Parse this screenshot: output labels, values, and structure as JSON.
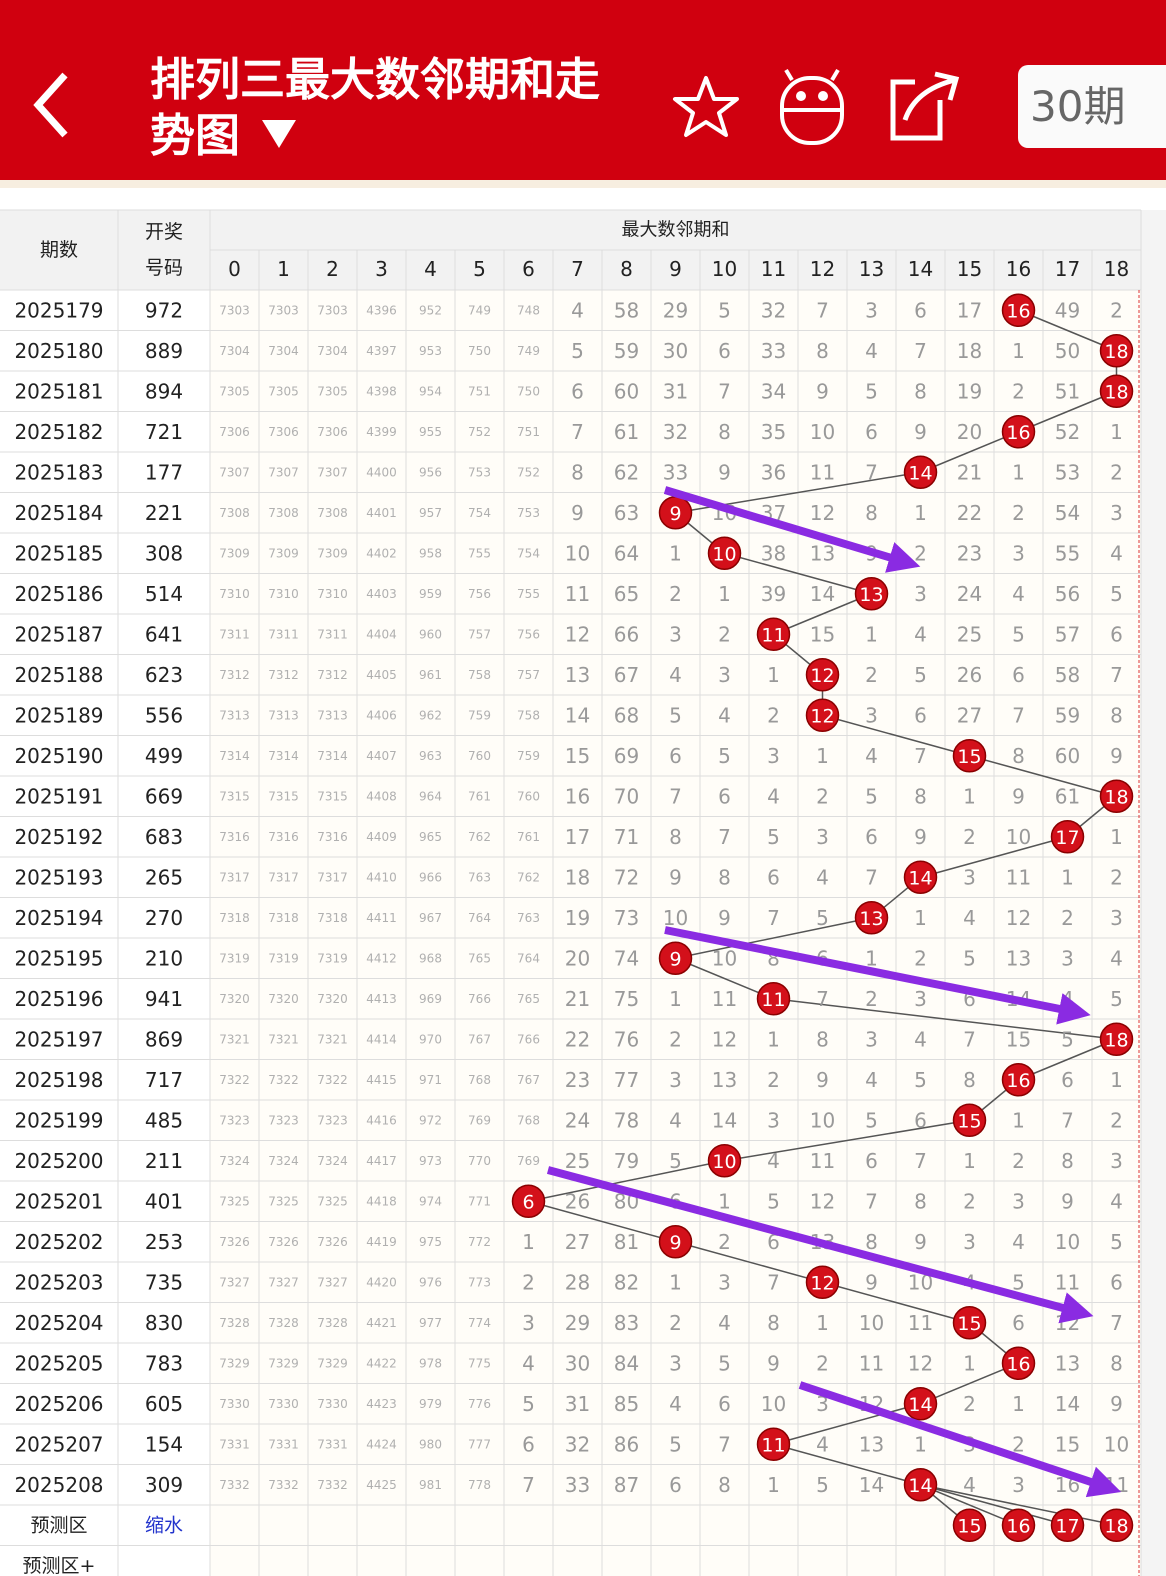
{
  "header": {
    "title": "排列三最大数邻期和走势图",
    "period_select": "30期"
  },
  "table": {
    "period_header": "期数",
    "number_header": "开奖号码",
    "group_header": "最大数邻期和",
    "columns": [
      0,
      1,
      2,
      3,
      4,
      5,
      6,
      7,
      8,
      9,
      10,
      11,
      12,
      13,
      14,
      15,
      16,
      17,
      18
    ],
    "rows": [
      {
        "period": "2025179",
        "number": "972",
        "cells": [
          7303,
          7303,
          7303,
          4396,
          952,
          749,
          748,
          4,
          58,
          29,
          5,
          32,
          7,
          3,
          6,
          17,
          {
            "value": 16,
            "hit": true
          },
          49,
          2
        ]
      },
      {
        "period": "2025180",
        "number": "889",
        "cells": [
          7304,
          7304,
          7304,
          4397,
          953,
          750,
          749,
          5,
          59,
          30,
          6,
          33,
          8,
          4,
          7,
          18,
          1,
          50,
          {
            "value": 18,
            "hit": true
          }
        ]
      },
      {
        "period": "2025181",
        "number": "894",
        "cells": [
          7305,
          7305,
          7305,
          4398,
          954,
          751,
          750,
          6,
          60,
          31,
          7,
          34,
          9,
          5,
          8,
          19,
          2,
          51,
          {
            "value": 18,
            "hit": true
          }
        ]
      },
      {
        "period": "2025182",
        "number": "721",
        "cells": [
          7306,
          7306,
          7306,
          4399,
          955,
          752,
          751,
          7,
          61,
          32,
          8,
          35,
          10,
          6,
          9,
          20,
          {
            "value": 16,
            "hit": true
          },
          52,
          1
        ]
      },
      {
        "period": "2025183",
        "number": "177",
        "cells": [
          7307,
          7307,
          7307,
          4400,
          956,
          753,
          752,
          8,
          62,
          33,
          9,
          36,
          11,
          7,
          {
            "value": 14,
            "hit": true
          },
          21,
          1,
          53,
          2
        ]
      },
      {
        "period": "2025184",
        "number": "221",
        "cells": [
          7308,
          7308,
          7308,
          4401,
          957,
          754,
          753,
          9,
          63,
          {
            "value": 9,
            "hit": true
          },
          10,
          37,
          12,
          8,
          1,
          22,
          2,
          54,
          3
        ]
      },
      {
        "period": "2025185",
        "number": "308",
        "cells": [
          7309,
          7309,
          7309,
          4402,
          958,
          755,
          754,
          10,
          64,
          1,
          {
            "value": 10,
            "hit": true
          },
          38,
          13,
          9,
          2,
          23,
          3,
          55,
          4
        ]
      },
      {
        "period": "2025186",
        "number": "514",
        "cells": [
          7310,
          7310,
          7310,
          4403,
          959,
          756,
          755,
          11,
          65,
          2,
          1,
          39,
          14,
          {
            "value": 13,
            "hit": true
          },
          3,
          24,
          4,
          56,
          5
        ]
      },
      {
        "period": "2025187",
        "number": "641",
        "cells": [
          7311,
          7311,
          7311,
          4404,
          960,
          757,
          756,
          12,
          66,
          3,
          2,
          {
            "value": 11,
            "hit": true
          },
          15,
          1,
          4,
          25,
          5,
          57,
          6
        ]
      },
      {
        "period": "2025188",
        "number": "623",
        "cells": [
          7312,
          7312,
          7312,
          4405,
          961,
          758,
          757,
          13,
          67,
          4,
          3,
          1,
          {
            "value": 12,
            "hit": true
          },
          2,
          5,
          26,
          6,
          58,
          7
        ]
      },
      {
        "period": "2025189",
        "number": "556",
        "cells": [
          7313,
          7313,
          7313,
          4406,
          962,
          759,
          758,
          14,
          68,
          5,
          4,
          2,
          {
            "value": 12,
            "hit": true
          },
          3,
          6,
          27,
          7,
          59,
          8
        ]
      },
      {
        "period": "2025190",
        "number": "499",
        "cells": [
          7314,
          7314,
          7314,
          4407,
          963,
          760,
          759,
          15,
          69,
          6,
          5,
          3,
          1,
          4,
          7,
          {
            "value": 15,
            "hit": true
          },
          8,
          60,
          9
        ]
      },
      {
        "period": "2025191",
        "number": "669",
        "cells": [
          7315,
          7315,
          7315,
          4408,
          964,
          761,
          760,
          16,
          70,
          7,
          6,
          4,
          2,
          5,
          8,
          1,
          9,
          61,
          {
            "value": 18,
            "hit": true
          }
        ]
      },
      {
        "period": "2025192",
        "number": "683",
        "cells": [
          7316,
          7316,
          7316,
          4409,
          965,
          762,
          761,
          17,
          71,
          8,
          7,
          5,
          3,
          6,
          9,
          2,
          10,
          {
            "value": 17,
            "hit": true
          },
          1
        ]
      },
      {
        "period": "2025193",
        "number": "265",
        "cells": [
          7317,
          7317,
          7317,
          4410,
          966,
          763,
          762,
          18,
          72,
          9,
          8,
          6,
          4,
          7,
          {
            "value": 14,
            "hit": true
          },
          3,
          11,
          1,
          2
        ]
      },
      {
        "period": "2025194",
        "number": "270",
        "cells": [
          7318,
          7318,
          7318,
          4411,
          967,
          764,
          763,
          19,
          73,
          10,
          9,
          7,
          5,
          {
            "value": 13,
            "hit": true
          },
          1,
          4,
          12,
          2,
          3
        ]
      },
      {
        "period": "2025195",
        "number": "210",
        "cells": [
          7319,
          7319,
          7319,
          4412,
          968,
          765,
          764,
          20,
          74,
          {
            "value": 9,
            "hit": true
          },
          10,
          8,
          6,
          1,
          2,
          5,
          13,
          3,
          4
        ]
      },
      {
        "period": "2025196",
        "number": "941",
        "cells": [
          7320,
          7320,
          7320,
          4413,
          969,
          766,
          765,
          21,
          75,
          1,
          11,
          {
            "value": 11,
            "hit": true
          },
          7,
          2,
          3,
          6,
          14,
          4,
          5
        ]
      },
      {
        "period": "2025197",
        "number": "869",
        "cells": [
          7321,
          7321,
          7321,
          4414,
          970,
          767,
          766,
          22,
          76,
          2,
          12,
          1,
          8,
          3,
          4,
          7,
          15,
          5,
          {
            "value": 18,
            "hit": true
          }
        ]
      },
      {
        "period": "2025198",
        "number": "717",
        "cells": [
          7322,
          7322,
          7322,
          4415,
          971,
          768,
          767,
          23,
          77,
          3,
          13,
          2,
          9,
          4,
          5,
          8,
          {
            "value": 16,
            "hit": true
          },
          6,
          1
        ]
      },
      {
        "period": "2025199",
        "number": "485",
        "cells": [
          7323,
          7323,
          7323,
          4416,
          972,
          769,
          768,
          24,
          78,
          4,
          14,
          3,
          10,
          5,
          6,
          {
            "value": 15,
            "hit": true
          },
          1,
          7,
          2
        ]
      },
      {
        "period": "2025200",
        "number": "211",
        "cells": [
          7324,
          7324,
          7324,
          4417,
          973,
          770,
          769,
          25,
          79,
          5,
          {
            "value": 10,
            "hit": true
          },
          4,
          11,
          6,
          7,
          1,
          2,
          8,
          3
        ]
      },
      {
        "period": "2025201",
        "number": "401",
        "cells": [
          7325,
          7325,
          7325,
          4418,
          974,
          771,
          {
            "value": 6,
            "hit": true
          },
          26,
          80,
          6,
          1,
          5,
          12,
          7,
          8,
          2,
          3,
          9,
          4
        ]
      },
      {
        "period": "2025202",
        "number": "253",
        "cells": [
          7326,
          7326,
          7326,
          4419,
          975,
          772,
          1,
          27,
          81,
          {
            "value": 9,
            "hit": true
          },
          2,
          6,
          13,
          8,
          9,
          3,
          4,
          10,
          5
        ]
      },
      {
        "period": "2025203",
        "number": "735",
        "cells": [
          7327,
          7327,
          7327,
          4420,
          976,
          773,
          2,
          28,
          82,
          1,
          3,
          7,
          {
            "value": 12,
            "hit": true
          },
          9,
          10,
          4,
          5,
          11,
          6
        ]
      },
      {
        "period": "2025204",
        "number": "830",
        "cells": [
          7328,
          7328,
          7328,
          4421,
          977,
          774,
          3,
          29,
          83,
          2,
          4,
          8,
          1,
          10,
          11,
          {
            "value": 15,
            "hit": true
          },
          6,
          12,
          7
        ]
      },
      {
        "period": "2025205",
        "number": "783",
        "cells": [
          7329,
          7329,
          7329,
          4422,
          978,
          775,
          4,
          30,
          84,
          3,
          5,
          9,
          2,
          11,
          12,
          1,
          {
            "value": 16,
            "hit": true
          },
          13,
          8
        ]
      },
      {
        "period": "2025206",
        "number": "605",
        "cells": [
          7330,
          7330,
          7330,
          4423,
          979,
          776,
          5,
          31,
          85,
          4,
          6,
          10,
          3,
          12,
          {
            "value": 14,
            "hit": true
          },
          2,
          1,
          14,
          9
        ]
      },
      {
        "period": "2025207",
        "number": "154",
        "cells": [
          7331,
          7331,
          7331,
          4424,
          980,
          777,
          6,
          32,
          86,
          5,
          7,
          {
            "value": 11,
            "hit": true
          },
          4,
          13,
          1,
          3,
          2,
          15,
          10
        ]
      },
      {
        "period": "2025208",
        "number": "309",
        "cells": [
          7332,
          7332,
          7332,
          4425,
          981,
          778,
          7,
          33,
          87,
          6,
          8,
          1,
          5,
          14,
          {
            "value": 14,
            "hit": true
          },
          4,
          3,
          16,
          11
        ]
      }
    ],
    "prediction": {
      "label": "预测区",
      "action": "缩水",
      "balls": [
        15,
        16,
        17,
        18
      ]
    },
    "prediction_plus": {
      "label": "预测区+"
    }
  }
}
